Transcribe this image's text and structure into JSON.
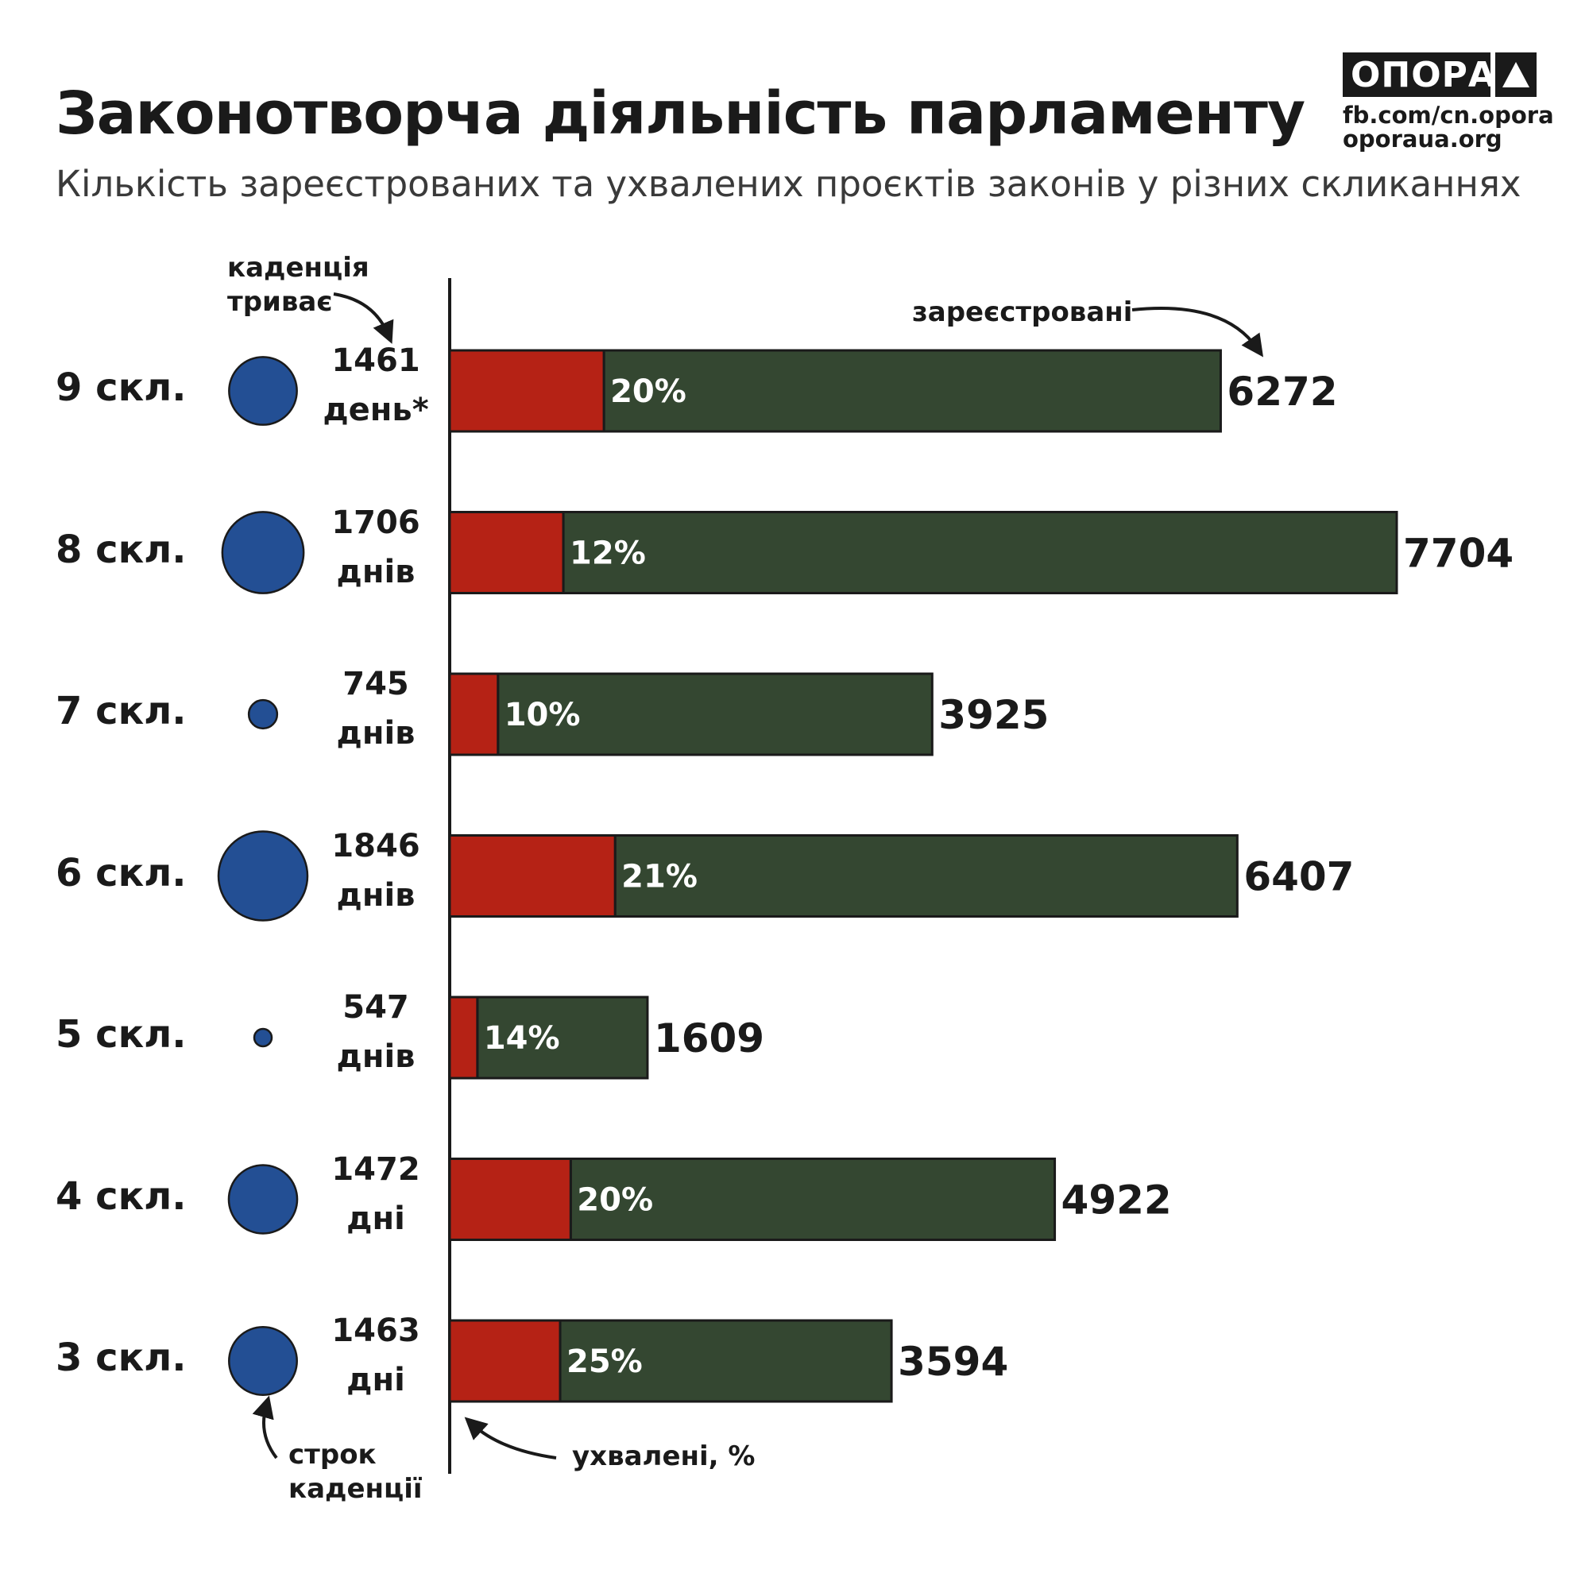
{
  "header": {
    "title": "Законотворча діяльність парламенту",
    "subtitle": "Кількість зареєстрованих та ухвалених проєктів законів у різних скликаннях"
  },
  "logo": {
    "word": "ОПОРА",
    "links": [
      "fb.com/cn.opora",
      "oporaua.org"
    ]
  },
  "annotations": {
    "cadence_ongoing": [
      "каденція",
      "триває"
    ],
    "registered": "зареєстровані",
    "term_length": [
      "строк",
      "каденції"
    ],
    "approved_pct": "ухвалені, %"
  },
  "colors": {
    "approved": "#b52215",
    "registered": "#344731",
    "circle": "#234f94",
    "outline": "#1a1a1a"
  },
  "chart_data": {
    "type": "bar",
    "orientation": "horizontal",
    "stacked": true,
    "title": "Законотворча діяльність парламенту",
    "subtitle": "Кількість зареєстрованих та ухвалених проєктів законів у різних скликаннях",
    "categories": [
      "9 скл.",
      "8 скл.",
      "7 скл.",
      "6 скл.",
      "5 скл.",
      "4 скл.",
      "3 скл."
    ],
    "registered": [
      6272,
      7704,
      3925,
      6407,
      1609,
      4922,
      3594
    ],
    "approved_pct": [
      20,
      12,
      10,
      21,
      14,
      20,
      25
    ],
    "approved_pct_labels": [
      "20%",
      "12%",
      "10%",
      "21%",
      "14%",
      "20%",
      "25%"
    ],
    "term_days": [
      1461,
      1706,
      745,
      1846,
      547,
      1472,
      1463
    ],
    "term_day_labels": [
      "1461",
      "1706",
      "745",
      "1846",
      "547",
      "1472",
      "1463"
    ],
    "term_unit_labels": [
      "день*",
      "днів",
      "днів",
      "днів",
      "днів",
      "дні",
      "дні"
    ],
    "legend": [
      "зареєстровані",
      "ухвалені, %",
      "строк каденції"
    ],
    "grid": false
  }
}
